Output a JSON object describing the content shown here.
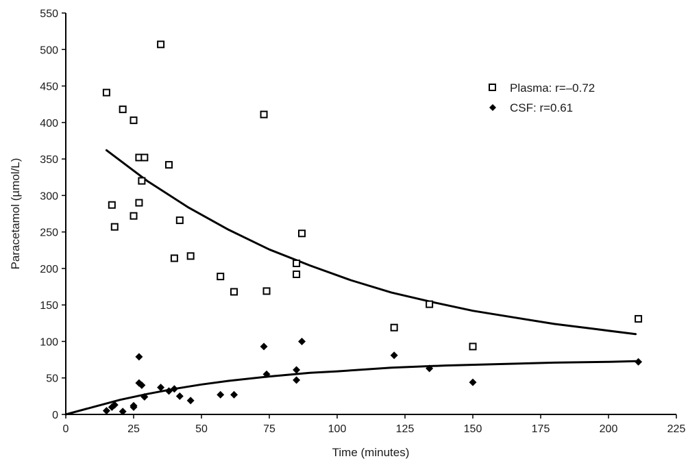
{
  "chart_data": {
    "type": "scatter",
    "title": "",
    "xlabel": "Time (minutes)",
    "ylabel": "Paracetamol (µmol/L)",
    "xlim": [
      0,
      225
    ],
    "ylim": [
      0,
      550
    ],
    "xticks": [
      0,
      25,
      50,
      75,
      100,
      125,
      150,
      175,
      200,
      225
    ],
    "yticks": [
      0,
      50,
      100,
      150,
      200,
      250,
      300,
      350,
      400,
      450,
      500,
      550
    ],
    "grid": false,
    "legend_position": "top-right",
    "series": [
      {
        "name": "Plasma: r=–0.72",
        "marker": "open-square",
        "color": "#000000",
        "points": [
          [
            15,
            441
          ],
          [
            17,
            287
          ],
          [
            18,
            257
          ],
          [
            21,
            418
          ],
          [
            25,
            403
          ],
          [
            25,
            272
          ],
          [
            27,
            352
          ],
          [
            27,
            290
          ],
          [
            28,
            320
          ],
          [
            29,
            352
          ],
          [
            35,
            507
          ],
          [
            38,
            342
          ],
          [
            40,
            214
          ],
          [
            42,
            266
          ],
          [
            46,
            217
          ],
          [
            57,
            189
          ],
          [
            62,
            168
          ],
          [
            73,
            411
          ],
          [
            74,
            169
          ],
          [
            85,
            207
          ],
          [
            85,
            192
          ],
          [
            87,
            248
          ],
          [
            121,
            119
          ],
          [
            134,
            151
          ],
          [
            150,
            93
          ],
          [
            211,
            131
          ]
        ],
        "fit": [
          [
            15,
            362
          ],
          [
            30,
            320
          ],
          [
            45,
            284
          ],
          [
            60,
            253
          ],
          [
            75,
            226
          ],
          [
            90,
            204
          ],
          [
            105,
            184
          ],
          [
            120,
            167
          ],
          [
            135,
            154
          ],
          [
            150,
            142
          ],
          [
            165,
            133
          ],
          [
            180,
            124
          ],
          [
            195,
            117
          ],
          [
            210,
            110
          ]
        ]
      },
      {
        "name": "CSF: r=0.61",
        "marker": "filled-diamond",
        "color": "#000000",
        "points": [
          [
            15,
            5
          ],
          [
            17,
            10
          ],
          [
            18,
            13
          ],
          [
            21,
            4
          ],
          [
            25,
            10
          ],
          [
            25,
            12
          ],
          [
            27,
            79
          ],
          [
            27,
            43
          ],
          [
            28,
            40
          ],
          [
            29,
            24
          ],
          [
            35,
            37
          ],
          [
            38,
            32
          ],
          [
            40,
            35
          ],
          [
            42,
            25
          ],
          [
            46,
            19
          ],
          [
            57,
            27
          ],
          [
            62,
            27
          ],
          [
            73,
            93
          ],
          [
            74,
            55
          ],
          [
            85,
            61
          ],
          [
            85,
            47
          ],
          [
            87,
            100
          ],
          [
            121,
            81
          ],
          [
            134,
            63
          ],
          [
            150,
            44
          ],
          [
            211,
            72
          ]
        ],
        "fit": [
          [
            0,
            0
          ],
          [
            10,
            10
          ],
          [
            20,
            20
          ],
          [
            30,
            28
          ],
          [
            40,
            35
          ],
          [
            50,
            41
          ],
          [
            60,
            46
          ],
          [
            75,
            52
          ],
          [
            90,
            57
          ],
          [
            100,
            59
          ],
          [
            120,
            64
          ],
          [
            140,
            67
          ],
          [
            160,
            69
          ],
          [
            180,
            71
          ],
          [
            200,
            72
          ],
          [
            210,
            73
          ]
        ]
      }
    ]
  }
}
